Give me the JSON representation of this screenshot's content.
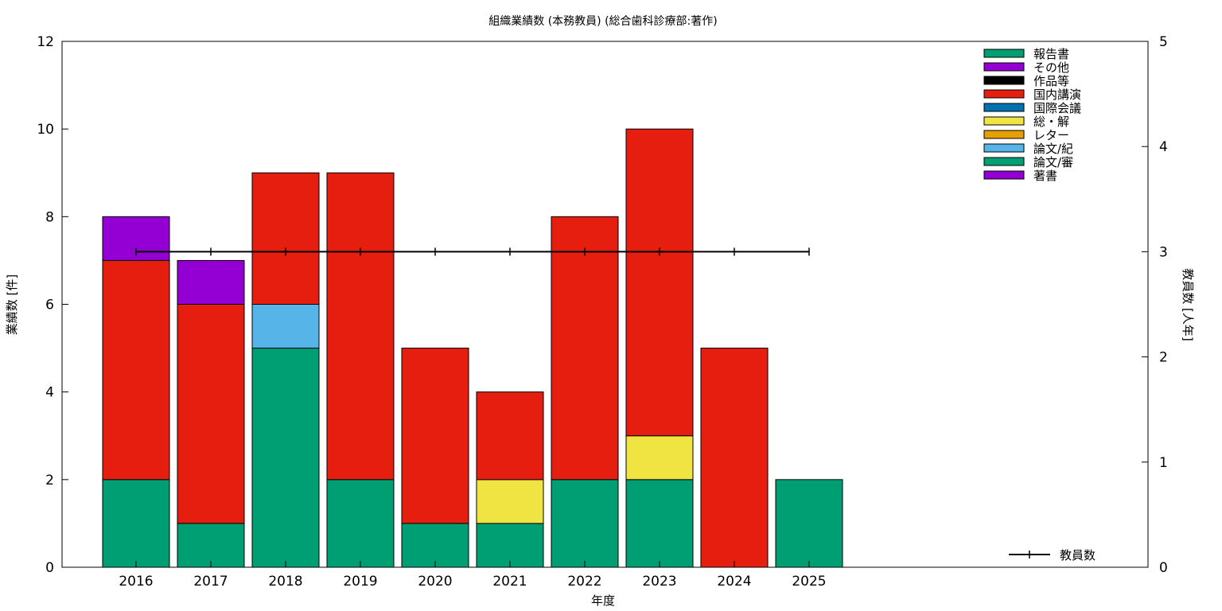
{
  "chart_data": {
    "type": "bar",
    "stacked": true,
    "title": "組織業績数 (本務教員) (総合歯科診療部:著作)",
    "xlabel": "年度",
    "ylabel": "業績数 [件]",
    "y2label": "教員数 [人年]",
    "categories": [
      "2016",
      "2017",
      "2018",
      "2019",
      "2020",
      "2021",
      "2022",
      "2023",
      "2024",
      "2025"
    ],
    "ylim": [
      0,
      12
    ],
    "yticks": [
      0,
      2,
      4,
      6,
      8,
      10,
      12
    ],
    "y2lim": [
      0,
      5
    ],
    "y2ticks": [
      0,
      1,
      2,
      3,
      4,
      5
    ],
    "grid": false,
    "legend_position": "top-right",
    "series": [
      {
        "name": "著書",
        "color": "#9400d3",
        "values": [
          0,
          0,
          0,
          0,
          0,
          0,
          0,
          0,
          0,
          0
        ]
      },
      {
        "name": "論文/審",
        "color": "#009e73",
        "values": [
          2,
          1,
          5,
          2,
          1,
          1,
          2,
          2,
          0,
          2
        ]
      },
      {
        "name": "論文/紀",
        "color": "#56b4e9",
        "values": [
          0,
          0,
          1,
          0,
          0,
          0,
          0,
          0,
          0,
          0
        ]
      },
      {
        "name": "レター",
        "color": "#e69f00",
        "values": [
          0,
          0,
          0,
          0,
          0,
          0,
          0,
          0,
          0,
          0
        ]
      },
      {
        "name": "総・解",
        "color": "#f0e442",
        "values": [
          0,
          0,
          0,
          0,
          0,
          1,
          0,
          1,
          0,
          0
        ]
      },
      {
        "name": "国際会議",
        "color": "#0072b2",
        "values": [
          0,
          0,
          0,
          0,
          0,
          0,
          0,
          0,
          0,
          0
        ]
      },
      {
        "name": "国内講演",
        "color": "#e51e10",
        "values": [
          5,
          5,
          3,
          7,
          4,
          2,
          6,
          7,
          5,
          0
        ]
      },
      {
        "name": "作品等",
        "color": "#000000",
        "values": [
          0,
          0,
          0,
          0,
          0,
          0,
          0,
          0,
          0,
          0
        ]
      },
      {
        "name": "その他",
        "color": "#9400d3",
        "values": [
          1,
          1,
          0,
          0,
          0,
          0,
          0,
          0,
          0,
          0
        ]
      },
      {
        "name": "報告書",
        "color": "#009e73",
        "values": [
          0,
          0,
          0,
          0,
          0,
          0,
          0,
          0,
          0,
          0
        ]
      }
    ],
    "legend_order": [
      "報告書",
      "その他",
      "作品等",
      "国内講演",
      "国際会議",
      "総・解",
      "レター",
      "論文/紀",
      "論文/審",
      "著書"
    ],
    "line_series": {
      "name": "教員数",
      "axis": "y2",
      "color": "#000000",
      "values": [
        3,
        3,
        3,
        3,
        3,
        3,
        3,
        3,
        3,
        3
      ]
    }
  }
}
